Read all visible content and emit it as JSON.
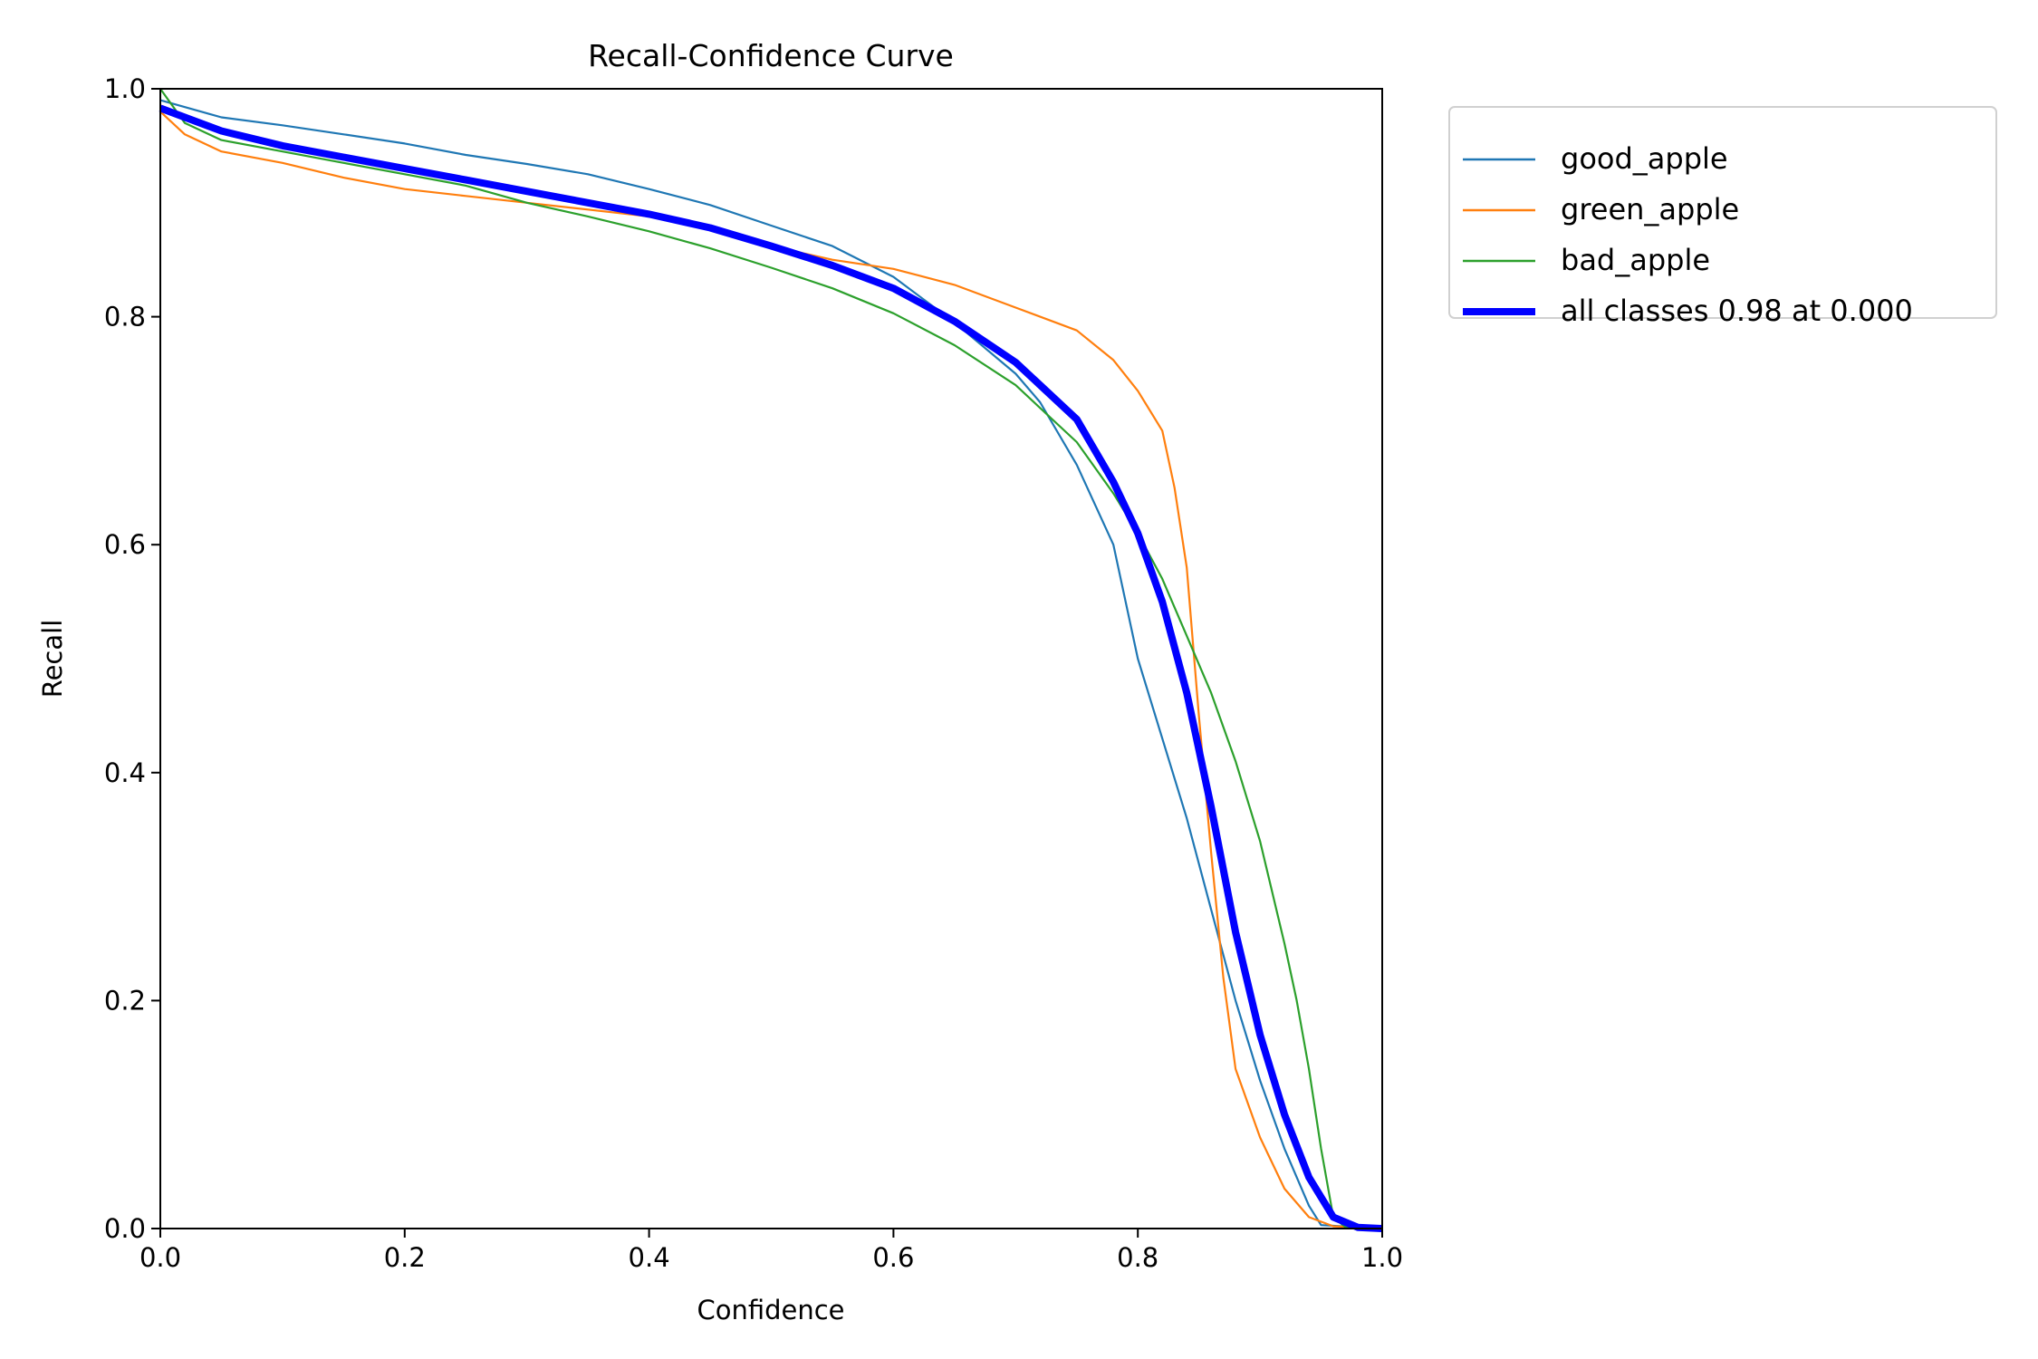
{
  "chart_data": {
    "type": "line",
    "title": "Recall-Confidence Curve",
    "xlabel": "Confidence",
    "ylabel": "Recall",
    "xlim": [
      0,
      1
    ],
    "ylim": [
      0,
      1
    ],
    "xticks": [
      "0.0",
      "0.2",
      "0.4",
      "0.6",
      "0.8",
      "1.0"
    ],
    "yticks": [
      "0.0",
      "0.2",
      "0.4",
      "0.6",
      "0.8",
      "1.0"
    ],
    "grid": false,
    "legend_position": "outside-top-right",
    "series": [
      {
        "name": "good_apple",
        "color": "#1f77b4",
        "thick": false,
        "x": [
          0,
          0.05,
          0.1,
          0.15,
          0.2,
          0.25,
          0.3,
          0.35,
          0.4,
          0.45,
          0.5,
          0.55,
          0.6,
          0.65,
          0.7,
          0.72,
          0.75,
          0.78,
          0.8,
          0.82,
          0.84,
          0.86,
          0.88,
          0.9,
          0.92,
          0.94,
          0.95,
          1.0
        ],
        "y": [
          0.99,
          0.975,
          0.968,
          0.96,
          0.952,
          0.942,
          0.934,
          0.925,
          0.912,
          0.898,
          0.88,
          0.862,
          0.835,
          0.795,
          0.75,
          0.725,
          0.67,
          0.6,
          0.5,
          0.43,
          0.36,
          0.28,
          0.2,
          0.13,
          0.07,
          0.02,
          0.003,
          0
        ]
      },
      {
        "name": "green_apple",
        "color": "#ff7f0e",
        "thick": false,
        "x": [
          0,
          0.02,
          0.05,
          0.1,
          0.15,
          0.2,
          0.25,
          0.3,
          0.35,
          0.4,
          0.45,
          0.5,
          0.55,
          0.6,
          0.65,
          0.7,
          0.75,
          0.78,
          0.8,
          0.82,
          0.83,
          0.84,
          0.85,
          0.86,
          0.87,
          0.88,
          0.9,
          0.92,
          0.94,
          0.96,
          1.0
        ],
        "y": [
          0.98,
          0.96,
          0.945,
          0.935,
          0.922,
          0.912,
          0.906,
          0.9,
          0.894,
          0.888,
          0.876,
          0.862,
          0.85,
          0.842,
          0.828,
          0.808,
          0.788,
          0.762,
          0.735,
          0.7,
          0.65,
          0.58,
          0.45,
          0.33,
          0.22,
          0.14,
          0.08,
          0.035,
          0.01,
          0.002,
          0
        ]
      },
      {
        "name": "bad_apple",
        "color": "#2ca02c",
        "thick": false,
        "x": [
          0,
          0.02,
          0.05,
          0.1,
          0.15,
          0.2,
          0.25,
          0.3,
          0.35,
          0.4,
          0.45,
          0.5,
          0.55,
          0.6,
          0.65,
          0.7,
          0.75,
          0.78,
          0.8,
          0.82,
          0.84,
          0.86,
          0.88,
          0.9,
          0.92,
          0.93,
          0.94,
          0.95,
          0.96,
          0.97,
          1.0
        ],
        "y": [
          1.0,
          0.97,
          0.955,
          0.945,
          0.935,
          0.925,
          0.915,
          0.9,
          0.888,
          0.875,
          0.86,
          0.843,
          0.825,
          0.803,
          0.775,
          0.74,
          0.69,
          0.645,
          0.61,
          0.57,
          0.52,
          0.47,
          0.41,
          0.34,
          0.25,
          0.2,
          0.14,
          0.07,
          0.01,
          0.001,
          0
        ]
      },
      {
        "name": "all classes 0.98 at 0.000",
        "color": "#0000ff",
        "thick": true,
        "x": [
          0,
          0.05,
          0.1,
          0.15,
          0.2,
          0.25,
          0.3,
          0.35,
          0.4,
          0.45,
          0.5,
          0.55,
          0.6,
          0.65,
          0.7,
          0.75,
          0.78,
          0.8,
          0.82,
          0.84,
          0.86,
          0.88,
          0.9,
          0.92,
          0.94,
          0.96,
          0.98,
          1.0
        ],
        "y": [
          0.983,
          0.963,
          0.95,
          0.94,
          0.93,
          0.92,
          0.91,
          0.9,
          0.89,
          0.878,
          0.862,
          0.845,
          0.825,
          0.796,
          0.76,
          0.71,
          0.655,
          0.61,
          0.55,
          0.47,
          0.37,
          0.26,
          0.17,
          0.1,
          0.045,
          0.01,
          0.001,
          0
        ]
      }
    ]
  }
}
